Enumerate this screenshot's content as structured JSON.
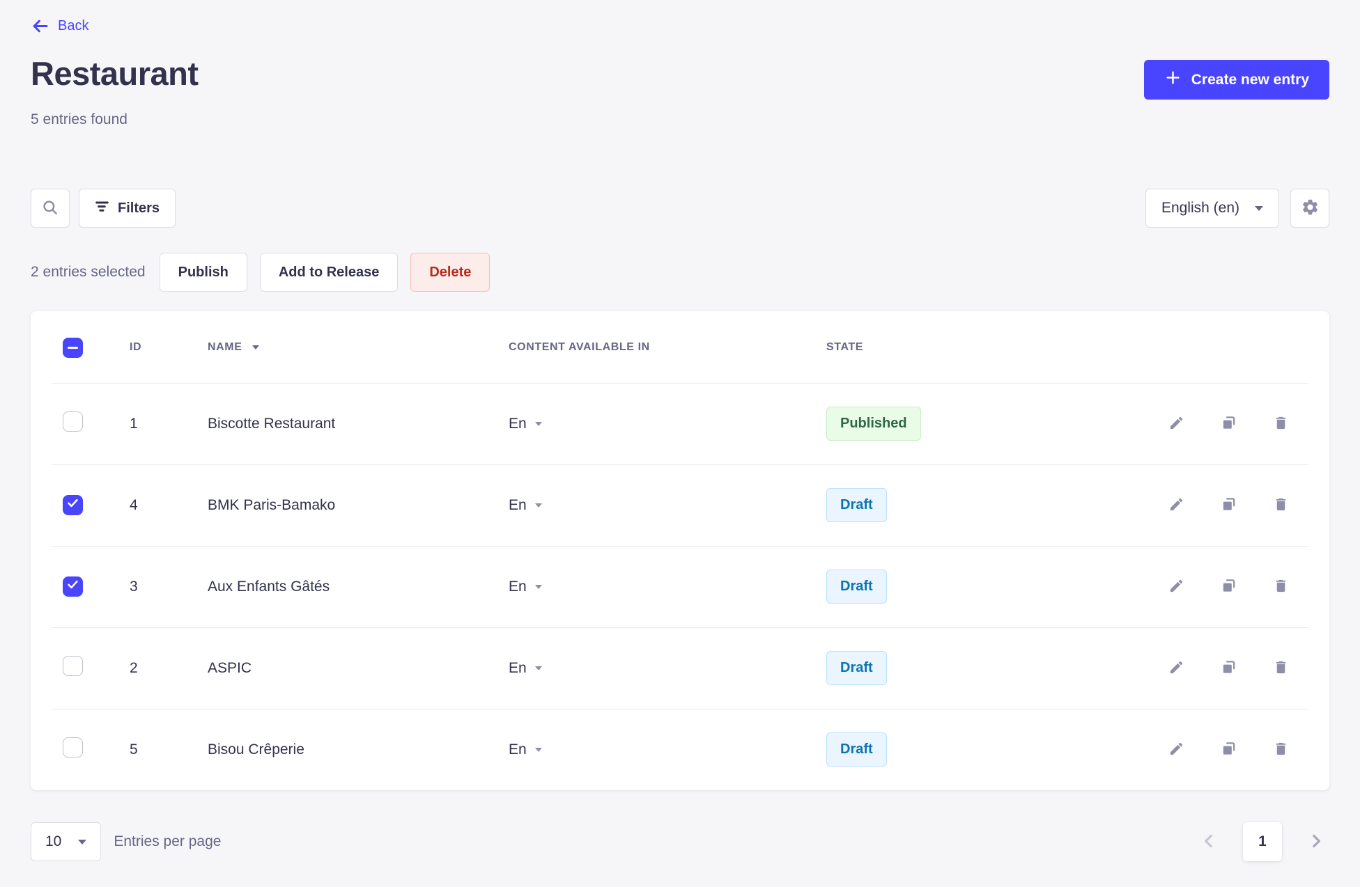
{
  "header": {
    "back_label": "Back",
    "title": "Restaurant",
    "subtitle": "5 entries found",
    "create_button_label": "Create new entry"
  },
  "toolbar": {
    "filters_label": "Filters",
    "locale_selected": "English (en)"
  },
  "selection_bar": {
    "selected_text": "2 entries selected",
    "publish_label": "Publish",
    "add_to_release_label": "Add to Release",
    "delete_label": "Delete"
  },
  "table": {
    "columns": [
      "ID",
      "NAME",
      "CONTENT AVAILABLE IN",
      "STATE"
    ],
    "select_all_state": "indeterminate",
    "rows": [
      {
        "id": "1",
        "name": "Biscotte Restaurant",
        "locale": "En",
        "state": "Published",
        "checked": false
      },
      {
        "id": "4",
        "name": "BMK Paris-Bamako",
        "locale": "En",
        "state": "Draft",
        "checked": true
      },
      {
        "id": "3",
        "name": "Aux Enfants Gâtés",
        "locale": "En",
        "state": "Draft",
        "checked": true
      },
      {
        "id": "2",
        "name": "ASPIC",
        "locale": "En",
        "state": "Draft",
        "checked": false
      },
      {
        "id": "5",
        "name": "Bisou Crêperie",
        "locale": "En",
        "state": "Draft",
        "checked": false
      }
    ]
  },
  "footer": {
    "page_size": "10",
    "page_size_label": "Entries per page",
    "current_page": "1"
  },
  "icons": [
    "arrow-left-icon",
    "plus-icon",
    "search-icon",
    "filter-icon",
    "chevron-down-icon",
    "gear-icon",
    "sort-caret-icon",
    "pencil-icon",
    "duplicate-icon",
    "trash-icon",
    "chevron-left-icon",
    "chevron-right-icon",
    "checkmark-icon",
    "indeterminate-dash-icon"
  ],
  "colors": {
    "primary": "#4945ff",
    "background": "#f6f6f9",
    "text_dark": "#32324d",
    "text_gray": "#666687",
    "icon_gray": "#8e8ea9",
    "border": "#dcdce4",
    "danger_bg": "#fcecea",
    "danger_border": "#f5c0b8",
    "danger_text": "#b72b1a",
    "published_bg": "#eafbe7",
    "published_border": "#c6f0c2",
    "published_text": "#2f6846",
    "draft_bg": "#eaf5ff",
    "draft_border": "#b8e1ff",
    "draft_text": "#0c75af"
  }
}
